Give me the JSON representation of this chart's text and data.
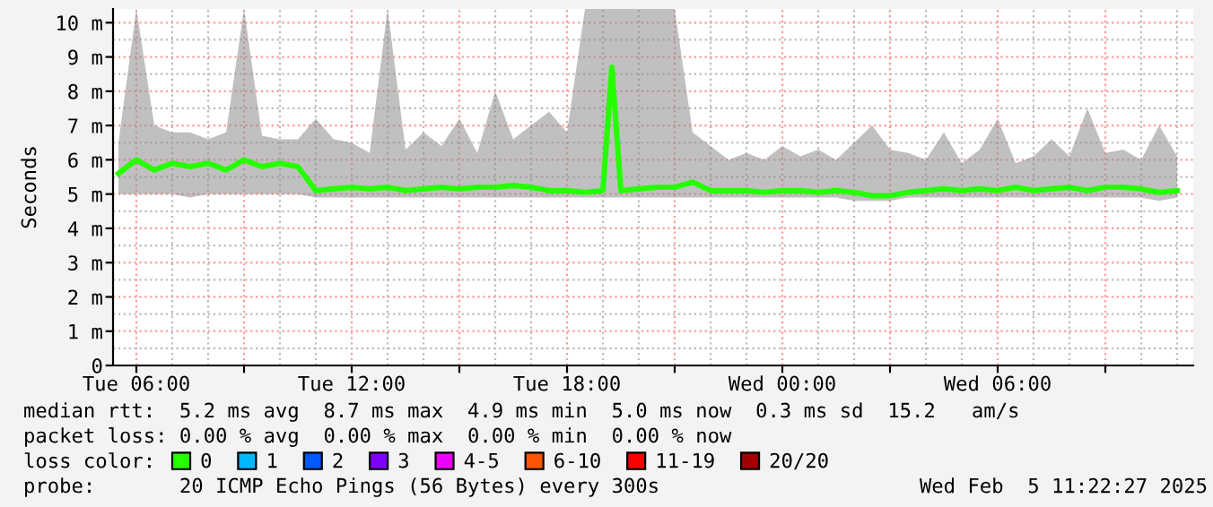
{
  "chart_data": {
    "type": "line",
    "ylabel": "Seconds",
    "xlim": [
      "2025-02-04T05:21",
      "2025-02-05T11:27"
    ],
    "xticks": [
      {
        "value": "2025-02-04T06:00",
        "label": "Tue 06:00"
      },
      {
        "value": "2025-02-04T09:00",
        "label": null
      },
      {
        "value": "2025-02-04T12:00",
        "label": "Tue 12:00"
      },
      {
        "value": "2025-02-04T15:00",
        "label": null
      },
      {
        "value": "2025-02-04T18:00",
        "label": "Tue 18:00"
      },
      {
        "value": "2025-02-04T21:00",
        "label": null
      },
      {
        "value": "2025-02-05T00:00",
        "label": "Wed 00:00"
      },
      {
        "value": "2025-02-05T03:00",
        "label": null
      },
      {
        "value": "2025-02-05T06:00",
        "label": "Wed 06:00"
      },
      {
        "value": "2025-02-05T09:00",
        "label": null
      }
    ],
    "ylim": [
      0,
      10.4
    ],
    "yticks": [
      0,
      {
        "value": 1,
        "label": "1 m"
      },
      {
        "value": 2,
        "label": "2 m"
      },
      {
        "value": 3,
        "label": "3 m"
      },
      {
        "value": 4,
        "label": "4 m"
      },
      {
        "value": 5,
        "label": "5 m"
      },
      {
        "value": 6,
        "label": "6 m"
      },
      {
        "value": 7,
        "label": "7 m"
      },
      {
        "value": 8,
        "label": "8 m"
      },
      {
        "value": 9,
        "label": "9 m"
      },
      {
        "value": 10,
        "label": "10 m"
      }
    ],
    "grid": true,
    "legend": "bottom",
    "legend_title": "loss color:",
    "x": [
      "2025-02-04T05:30",
      "2025-02-04T06:00",
      "2025-02-04T06:30",
      "2025-02-04T07:00",
      "2025-02-04T07:30",
      "2025-02-04T08:00",
      "2025-02-04T08:30",
      "2025-02-04T09:00",
      "2025-02-04T09:30",
      "2025-02-04T10:00",
      "2025-02-04T10:30",
      "2025-02-04T11:00",
      "2025-02-04T11:30",
      "2025-02-04T12:00",
      "2025-02-04T12:30",
      "2025-02-04T13:00",
      "2025-02-04T13:30",
      "2025-02-04T14:00",
      "2025-02-04T14:30",
      "2025-02-04T15:00",
      "2025-02-04T15:30",
      "2025-02-04T16:00",
      "2025-02-04T16:30",
      "2025-02-04T17:00",
      "2025-02-04T17:30",
      "2025-02-04T18:00",
      "2025-02-04T18:30",
      "2025-02-04T19:00",
      "2025-02-04T19:15",
      "2025-02-04T19:30",
      "2025-02-04T20:00",
      "2025-02-04T20:30",
      "2025-02-04T21:00",
      "2025-02-04T21:30",
      "2025-02-04T22:00",
      "2025-02-04T22:30",
      "2025-02-04T23:00",
      "2025-02-04T23:30",
      "2025-02-05T00:00",
      "2025-02-05T00:30",
      "2025-02-05T01:00",
      "2025-02-05T01:30",
      "2025-02-05T02:00",
      "2025-02-05T02:30",
      "2025-02-05T03:00",
      "2025-02-05T03:30",
      "2025-02-05T04:00",
      "2025-02-05T04:30",
      "2025-02-05T05:00",
      "2025-02-05T05:30",
      "2025-02-05T06:00",
      "2025-02-05T06:30",
      "2025-02-05T07:00",
      "2025-02-05T07:30",
      "2025-02-05T08:00",
      "2025-02-05T08:30",
      "2025-02-05T09:00",
      "2025-02-05T09:30",
      "2025-02-05T10:00",
      "2025-02-05T10:30",
      "2025-02-05T11:00"
    ],
    "series": [
      {
        "name": "0",
        "color": "#26ff00",
        "values": [
          5.6,
          6.0,
          5.7,
          5.9,
          5.8,
          5.9,
          5.7,
          6.0,
          5.8,
          5.9,
          5.8,
          5.1,
          5.15,
          5.2,
          5.15,
          5.2,
          5.1,
          5.15,
          5.2,
          5.15,
          5.2,
          5.2,
          5.25,
          5.2,
          5.1,
          5.1,
          5.05,
          5.1,
          8.7,
          5.1,
          5.15,
          5.2,
          5.2,
          5.35,
          5.1,
          5.1,
          5.1,
          5.05,
          5.1,
          5.1,
          5.05,
          5.1,
          5.05,
          4.95,
          4.95,
          5.05,
          5.1,
          5.15,
          5.1,
          5.15,
          5.1,
          5.2,
          5.1,
          5.15,
          5.2,
          5.1,
          5.2,
          5.2,
          5.15,
          5.05,
          5.1
        ],
        "lower": [
          5.0,
          5.0,
          5.0,
          5.0,
          4.9,
          5.0,
          5.0,
          5.0,
          5.0,
          5.0,
          5.0,
          4.9,
          4.9,
          4.9,
          4.9,
          4.9,
          4.9,
          4.9,
          4.9,
          4.9,
          4.9,
          4.9,
          4.9,
          4.9,
          4.9,
          4.9,
          4.9,
          4.9,
          4.9,
          4.9,
          4.9,
          4.9,
          4.9,
          4.9,
          4.9,
          4.9,
          4.9,
          4.9,
          4.9,
          4.9,
          4.9,
          4.9,
          4.8,
          4.8,
          4.8,
          4.9,
          4.9,
          4.9,
          4.9,
          4.9,
          4.9,
          4.9,
          4.9,
          4.9,
          4.9,
          4.9,
          4.9,
          4.9,
          4.9,
          4.8,
          4.9
        ],
        "upper": [
          6.5,
          10.4,
          7.0,
          6.8,
          6.8,
          6.6,
          6.8,
          10.4,
          6.7,
          6.6,
          6.6,
          7.2,
          6.6,
          6.5,
          6.2,
          10.4,
          6.3,
          6.8,
          6.4,
          7.2,
          6.2,
          8.0,
          6.6,
          7.0,
          7.4,
          6.8,
          10.4,
          10.4,
          10.4,
          10.4,
          10.4,
          10.4,
          10.4,
          6.8,
          6.4,
          6.0,
          6.2,
          6.0,
          6.4,
          6.1,
          6.3,
          6.0,
          6.5,
          7.0,
          6.3,
          6.2,
          6.0,
          6.8,
          5.9,
          6.3,
          7.2,
          5.9,
          6.1,
          6.6,
          6.1,
          7.5,
          6.2,
          6.3,
          6.0,
          7.0,
          6.1
        ]
      },
      {
        "name": "1",
        "color": "#00b8ff",
        "values": [
          null,
          null,
          null,
          null,
          null,
          null,
          null,
          null,
          null,
          null,
          null,
          null,
          null,
          null,
          null,
          null,
          null,
          null,
          null,
          null,
          null,
          null,
          null,
          null,
          null,
          null,
          null,
          null,
          null,
          null,
          null,
          null,
          null,
          null,
          null,
          null,
          null,
          null,
          null,
          null,
          null,
          null,
          null,
          null,
          null,
          null,
          null,
          null,
          null,
          null,
          null,
          null,
          null,
          null,
          null,
          null,
          null,
          null,
          null,
          null,
          null
        ]
      },
      {
        "name": "2",
        "color": "#0059ff",
        "values": [
          null,
          null,
          null,
          null,
          null,
          null,
          null,
          null,
          null,
          null,
          null,
          null,
          null,
          null,
          null,
          null,
          null,
          null,
          null,
          null,
          null,
          null,
          null,
          null,
          null,
          null,
          null,
          null,
          null,
          null,
          null,
          null,
          null,
          null,
          null,
          null,
          null,
          null,
          null,
          null,
          null,
          null,
          null,
          null,
          null,
          null,
          null,
          null,
          null,
          null,
          null,
          null,
          null,
          null,
          null,
          null,
          null,
          null,
          null,
          null,
          null
        ]
      },
      {
        "name": "3",
        "color": "#7e00ff",
        "values": [
          null,
          null,
          null,
          null,
          null,
          null,
          null,
          null,
          null,
          null,
          null,
          null,
          null,
          null,
          null,
          null,
          null,
          null,
          null,
          null,
          null,
          null,
          null,
          null,
          null,
          null,
          null,
          null,
          null,
          null,
          null,
          null,
          null,
          null,
          null,
          null,
          null,
          null,
          null,
          null,
          null,
          null,
          null,
          null,
          null,
          null,
          null,
          null,
          null,
          null,
          null,
          null,
          null,
          null,
          null,
          null,
          null,
          null,
          null,
          null,
          null
        ]
      },
      {
        "name": "4-5",
        "color": "#ee00ff",
        "values": [
          null,
          null,
          null,
          null,
          null,
          null,
          null,
          null,
          null,
          null,
          null,
          null,
          null,
          null,
          null,
          null,
          null,
          null,
          null,
          null,
          null,
          null,
          null,
          null,
          null,
          null,
          null,
          null,
          null,
          null,
          null,
          null,
          null,
          null,
          null,
          null,
          null,
          null,
          null,
          null,
          null,
          null,
          null,
          null,
          null,
          null,
          null,
          null,
          null,
          null,
          null,
          null,
          null,
          null,
          null,
          null,
          null,
          null,
          null,
          null,
          null
        ]
      },
      {
        "name": "6-10",
        "color": "#ff5500",
        "values": [
          null,
          null,
          null,
          null,
          null,
          null,
          null,
          null,
          null,
          null,
          null,
          null,
          null,
          null,
          null,
          null,
          null,
          null,
          null,
          null,
          null,
          null,
          null,
          null,
          null,
          null,
          null,
          null,
          null,
          null,
          null,
          null,
          null,
          null,
          null,
          null,
          null,
          null,
          null,
          null,
          null,
          null,
          null,
          null,
          null,
          null,
          null,
          null,
          null,
          null,
          null,
          null,
          null,
          null,
          null,
          null,
          null,
          null,
          null,
          null,
          null
        ]
      },
      {
        "name": "11-19",
        "color": "#ff0000",
        "values": [
          null,
          null,
          null,
          null,
          null,
          null,
          null,
          null,
          null,
          null,
          null,
          null,
          null,
          null,
          null,
          null,
          null,
          null,
          null,
          null,
          null,
          null,
          null,
          null,
          null,
          null,
          null,
          null,
          null,
          null,
          null,
          null,
          null,
          null,
          null,
          null,
          null,
          null,
          null,
          null,
          null,
          null,
          null,
          null,
          null,
          null,
          null,
          null,
          null,
          null,
          null,
          null,
          null,
          null,
          null,
          null,
          null,
          null,
          null,
          null,
          null
        ]
      },
      {
        "name": "20/20",
        "color": "#a10000",
        "values": [
          null,
          null,
          null,
          null,
          null,
          null,
          null,
          null,
          null,
          null,
          null,
          null,
          null,
          null,
          null,
          null,
          null,
          null,
          null,
          null,
          null,
          null,
          null,
          null,
          null,
          null,
          null,
          null,
          null,
          null,
          null,
          null,
          null,
          null,
          null,
          null,
          null,
          null,
          null,
          null,
          null,
          null,
          null,
          null,
          null,
          null,
          null,
          null,
          null,
          null,
          null,
          null,
          null,
          null,
          null,
          null,
          null,
          null,
          null,
          null,
          null
        ]
      }
    ],
    "annotations": [
      "median rtt:  5.2 ms avg  8.7 ms max  4.9 ms min  5.0 ms now  0.3 ms sd  15.2   am/s",
      "packet loss: 0.00 % avg  0.00 % max  0.00 % min  0.00 % now",
      "probe:       20 ICMP Echo Pings (56 Bytes) every 300s",
      "Wed Feb  5 11:22:27 2025"
    ]
  }
}
